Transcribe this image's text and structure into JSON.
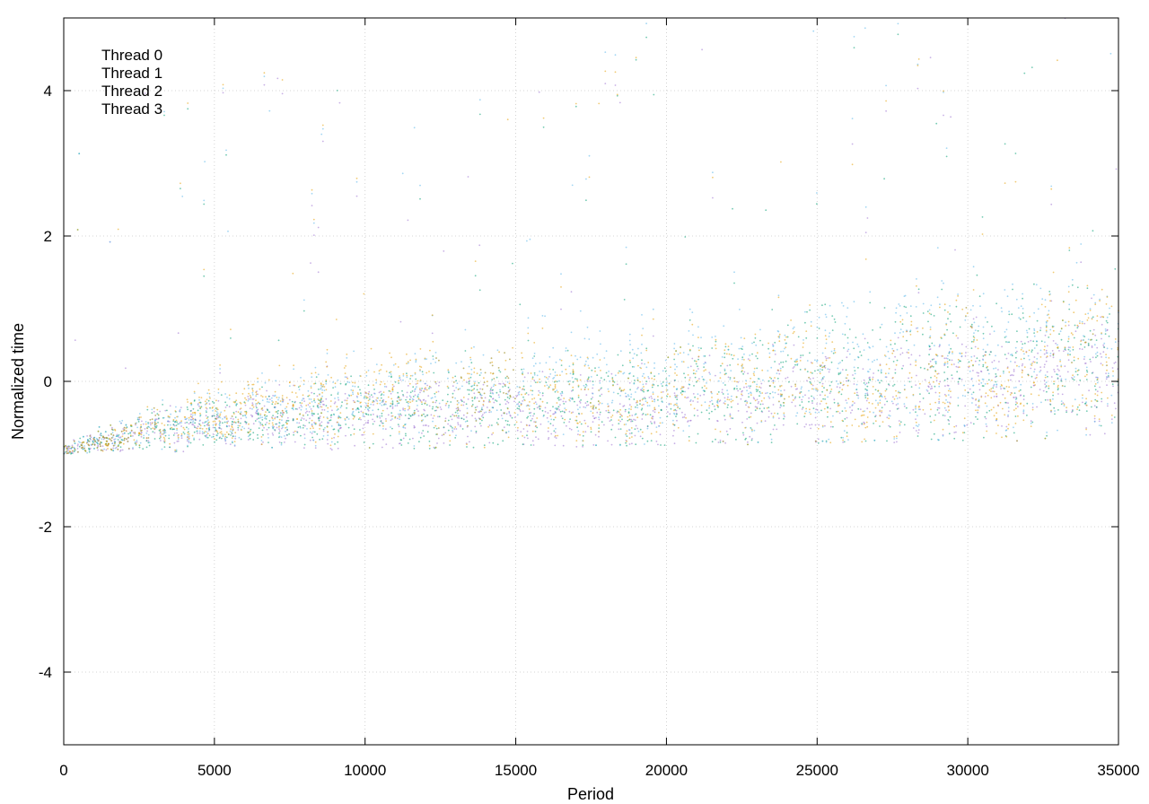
{
  "chart_data": {
    "type": "scatter",
    "title": "",
    "xlabel": "Period",
    "ylabel": "Normalized time",
    "xlim": [
      0,
      35000
    ],
    "ylim": [
      -5,
      5
    ],
    "x_ticks": [
      0,
      5000,
      10000,
      15000,
      20000,
      25000,
      30000,
      35000
    ],
    "x_tick_labels": [
      "0",
      "5000",
      "10000",
      "15000",
      "20000",
      "25000",
      "30000",
      "35000"
    ],
    "y_ticks": [
      -4,
      -2,
      0,
      2,
      4
    ],
    "y_tick_labels": [
      "-4",
      "-2",
      "0",
      "2",
      "4"
    ],
    "grid": true,
    "legend_position": "top-left",
    "series": [
      {
        "name": "Thread 0",
        "color": "#9b6fd0",
        "x": [
          0,
          1000,
          2000,
          3000,
          5000,
          7500,
          10000,
          12500,
          15000,
          16800,
          17500,
          20000,
          22500,
          25000,
          27500,
          30000,
          32500,
          35000
        ],
        "y": [
          -0.95,
          -0.85,
          -0.75,
          -0.65,
          -0.55,
          -0.5,
          -0.45,
          -0.4,
          -0.4,
          -0.55,
          -0.45,
          -0.4,
          -0.3,
          -0.2,
          -0.1,
          0.0,
          0.1,
          0.2
        ],
        "spread": [
          0.05,
          0.1,
          0.15,
          0.2,
          0.25,
          0.3,
          0.35,
          0.35,
          0.35,
          0.3,
          0.35,
          0.4,
          0.4,
          0.45,
          0.5,
          0.5,
          0.55,
          0.6
        ]
      },
      {
        "name": "Thread 1",
        "color": "#009e73",
        "x": [
          0,
          1000,
          2000,
          3000,
          5000,
          7500,
          10000,
          12500,
          15000,
          17500,
          20000,
          22500,
          25000,
          27500,
          30000,
          32500,
          35000
        ],
        "y": [
          -0.95,
          -0.85,
          -0.75,
          -0.65,
          -0.55,
          -0.5,
          -0.4,
          -0.35,
          -0.3,
          -0.3,
          -0.2,
          -0.1,
          0.0,
          0.1,
          0.2,
          0.3,
          0.4
        ],
        "spread": [
          0.05,
          0.1,
          0.15,
          0.2,
          0.25,
          0.3,
          0.35,
          0.4,
          0.45,
          0.5,
          0.55,
          0.6,
          0.65,
          0.7,
          0.75,
          0.8,
          0.8
        ]
      },
      {
        "name": "Thread 2",
        "color": "#56b4e9",
        "x": [
          0,
          1000,
          2000,
          3000,
          5000,
          7500,
          10000,
          12500,
          15000,
          17500,
          20000,
          22500,
          25000,
          27500,
          30000,
          32500,
          35000
        ],
        "y": [
          -0.95,
          -0.85,
          -0.75,
          -0.6,
          -0.5,
          -0.35,
          -0.25,
          -0.15,
          -0.1,
          0.0,
          -0.05,
          0.05,
          0.15,
          0.25,
          0.3,
          0.35,
          0.45
        ],
        "spread": [
          0.05,
          0.1,
          0.15,
          0.2,
          0.3,
          0.35,
          0.4,
          0.45,
          0.5,
          0.55,
          0.55,
          0.6,
          0.65,
          0.7,
          0.75,
          0.8,
          0.85
        ]
      },
      {
        "name": "Thread 3",
        "color": "#e69f00",
        "x": [
          0,
          1000,
          2000,
          3000,
          5000,
          7500,
          10000,
          12500,
          15000,
          17500,
          20000,
          22500,
          25000,
          26500,
          27500,
          30000,
          31000,
          32500,
          35000
        ],
        "y": [
          -0.95,
          -0.85,
          -0.75,
          -0.6,
          -0.45,
          -0.3,
          -0.2,
          -0.15,
          -0.1,
          -0.3,
          -0.15,
          0.0,
          0.15,
          -0.6,
          0.2,
          0.35,
          -0.4,
          0.3,
          0.5
        ],
        "spread": [
          0.05,
          0.1,
          0.15,
          0.2,
          0.3,
          0.35,
          0.4,
          0.45,
          0.5,
          0.45,
          0.5,
          0.55,
          0.6,
          0.25,
          0.65,
          0.7,
          0.3,
          0.75,
          0.8
        ]
      }
    ]
  }
}
